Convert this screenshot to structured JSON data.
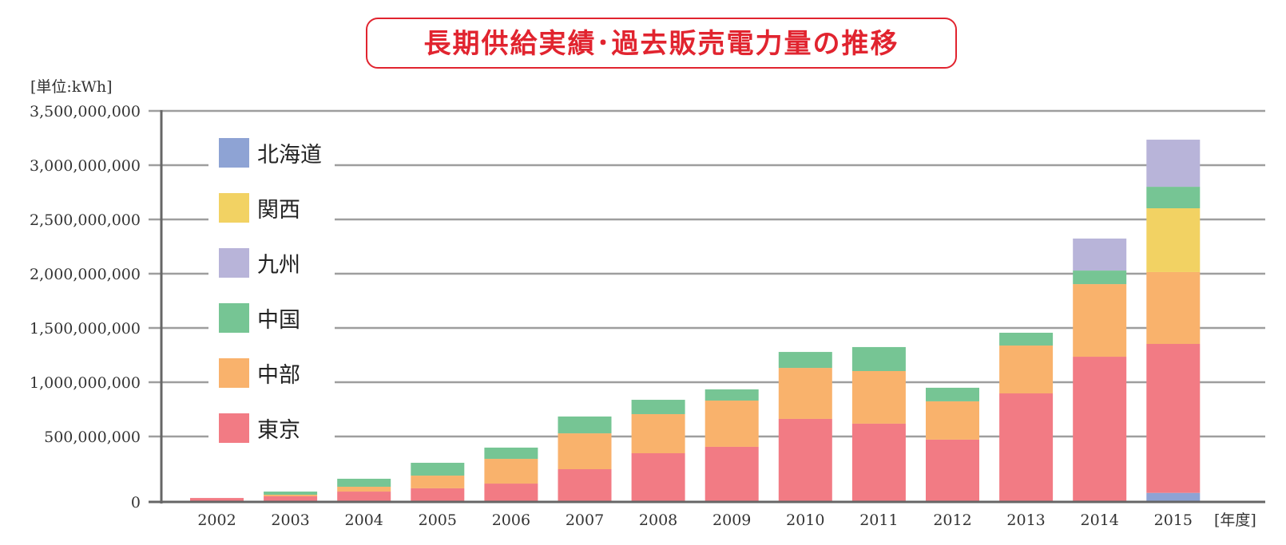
{
  "chart_data": {
    "type": "bar",
    "stacked": true,
    "title": "長期供給実績･過去販売電力量の推移",
    "ylabel": "[単位:kWh]",
    "xlabel": "[年度]",
    "ylim": [
      0,
      3500000000
    ],
    "grid": true,
    "legend_position": "top-left",
    "y_ticks": [
      {
        "value": 0,
        "label": "0"
      },
      {
        "value": 500000000,
        "label": "500,000,000"
      },
      {
        "value": 1000000000,
        "label": "1,000,000,000"
      },
      {
        "value": 1500000000,
        "label": "1,500,000,000"
      },
      {
        "value": 2000000000,
        "label": "2,000,000,000"
      },
      {
        "value": 2500000000,
        "label": "2,500,000,000"
      },
      {
        "value": 3000000000,
        "label": "3,000,000,000"
      },
      {
        "value": 3500000000,
        "label": "3,500,000,000"
      }
    ],
    "categories": [
      "2002",
      "2003",
      "2004",
      "2005",
      "2006",
      "2007",
      "2008",
      "2009",
      "2010",
      "2011",
      "2012",
      "2013",
      "2014",
      "2015"
    ],
    "series": [
      {
        "name": "北海道",
        "color": "#8ea3d4",
        "values": [
          0,
          0,
          0,
          0,
          0,
          0,
          0,
          0,
          0,
          0,
          0,
          0,
          0,
          69000000
        ]
      },
      {
        "name": "東京",
        "color": "#f27b84",
        "values": [
          30000000,
          43000000,
          79000000,
          104000000,
          140000000,
          250000000,
          372000000,
          421000000,
          662000000,
          618000000,
          476000000,
          897000000,
          1235000000,
          1284000000
        ]
      },
      {
        "name": "中部",
        "color": "#f9b26c",
        "values": [
          0,
          12000000,
          37000000,
          97000000,
          189000000,
          279000000,
          334000000,
          410000000,
          470000000,
          485000000,
          348000000,
          441000000,
          669000000,
          662000000
        ]
      },
      {
        "name": "関西",
        "color": "#f2d263",
        "values": [
          0,
          0,
          0,
          0,
          0,
          0,
          0,
          0,
          0,
          0,
          0,
          0,
          0,
          588000000
        ]
      },
      {
        "name": "中国",
        "color": "#76c594",
        "values": [
          0,
          24000000,
          61000000,
          98000000,
          86000000,
          155000000,
          132000000,
          103000000,
          147000000,
          221000000,
          125000000,
          118000000,
          125000000,
          198000000
        ]
      },
      {
        "name": "九州",
        "color": "#b8b4d9",
        "values": [
          0,
          0,
          0,
          0,
          0,
          0,
          0,
          0,
          0,
          0,
          0,
          0,
          295000000,
          434000000
        ]
      }
    ],
    "legend_order": [
      "北海道",
      "関西",
      "九州",
      "中国",
      "中部",
      "東京"
    ]
  },
  "colors": {
    "title": "#e1242f",
    "grid": "#9e9e9e",
    "axis": "#666666"
  }
}
